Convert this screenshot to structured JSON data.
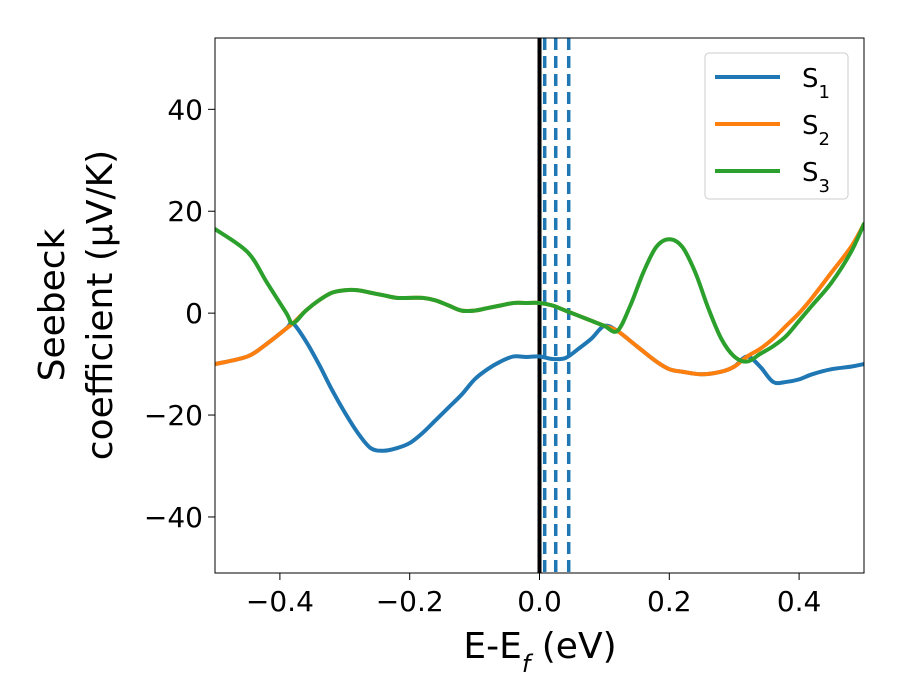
{
  "chart_data": {
    "type": "line",
    "xlabel": {
      "base": "E-E",
      "sub": "f",
      "rest": " (eV)"
    },
    "ylabel": {
      "line1": "Seebeck",
      "line2": "coefficient  (μV/K)"
    },
    "xlim": [
      -0.5,
      0.5
    ],
    "ylim": [
      -51,
      54
    ],
    "xticks": [
      -0.4,
      -0.2,
      0.0,
      0.2,
      0.4
    ],
    "xtick_labels": [
      "−0.4",
      "−0.2",
      "0.0",
      "0.2",
      "0.4"
    ],
    "yticks": [
      -40,
      -20,
      0,
      20,
      40
    ],
    "ytick_labels": [
      "−40",
      "−20",
      "0",
      "20",
      "40"
    ],
    "grid": false,
    "legend_position": "top-right",
    "vertical_lines": [
      {
        "x": 0.0,
        "color": "#000000",
        "style": "solid"
      },
      {
        "x": 0.008,
        "color": "#1f77b4",
        "style": "dashed"
      },
      {
        "x": 0.025,
        "color": "#1f77b4",
        "style": "dashed"
      },
      {
        "x": 0.045,
        "color": "#1f77b4",
        "style": "dashed"
      }
    ],
    "series": [
      {
        "name": "S",
        "sub": "1",
        "color": "#1f77b4",
        "x": [
          -0.5,
          -0.45,
          -0.42,
          -0.39,
          -0.38,
          -0.36,
          -0.34,
          -0.32,
          -0.3,
          -0.28,
          -0.26,
          -0.24,
          -0.22,
          -0.2,
          -0.18,
          -0.16,
          -0.14,
          -0.12,
          -0.1,
          -0.08,
          -0.06,
          -0.04,
          -0.02,
          0.0,
          0.02,
          0.04,
          0.06,
          0.08,
          0.1,
          0.12,
          0.15,
          0.18,
          0.2,
          0.22,
          0.25,
          0.28,
          0.3,
          0.32,
          0.34,
          0.36,
          0.38,
          0.4,
          0.42,
          0.45,
          0.48,
          0.5
        ],
        "y": [
          -10,
          -8.5,
          -6,
          -3,
          -2,
          -5.5,
          -10,
          -15,
          -19.5,
          -23.5,
          -26.5,
          -27,
          -26.5,
          -25.5,
          -23.5,
          -21,
          -18.5,
          -16,
          -13,
          -11,
          -9.5,
          -8.5,
          -8.6,
          -8.5,
          -9,
          -8.8,
          -7,
          -5,
          -2.5,
          -3.5,
          -6.5,
          -9.5,
          -11,
          -11.5,
          -12,
          -11.5,
          -10.5,
          -8.5,
          -10.5,
          -13.5,
          -13.5,
          -13,
          -12,
          -11,
          -10.5,
          -10
        ]
      },
      {
        "name": "S",
        "sub": "2",
        "color": "#ff7f0e",
        "x": [
          -0.5,
          -0.45,
          -0.42,
          -0.39,
          -0.38,
          -0.36,
          -0.34,
          -0.32,
          -0.3,
          -0.28,
          -0.26,
          -0.24,
          -0.22,
          -0.2,
          -0.18,
          -0.16,
          -0.14,
          -0.12,
          -0.1,
          -0.08,
          -0.06,
          -0.04,
          -0.02,
          0.0,
          0.02,
          0.04,
          0.06,
          0.08,
          0.1,
          0.12,
          0.15,
          0.18,
          0.2,
          0.22,
          0.25,
          0.28,
          0.3,
          0.32,
          0.34,
          0.36,
          0.38,
          0.4,
          0.42,
          0.45,
          0.48,
          0.5
        ],
        "y": [
          -10,
          -8.5,
          -6,
          -3,
          -2,
          0.5,
          2.5,
          4,
          4.5,
          4.5,
          4,
          3.5,
          3,
          3,
          3,
          2.5,
          1.5,
          0.5,
          0.5,
          1,
          1.5,
          2,
          2,
          2,
          1.5,
          0.5,
          -0.5,
          -1.5,
          -2.5,
          -3.5,
          -6.5,
          -9.5,
          -11,
          -11.5,
          -12,
          -11.5,
          -10.5,
          -8.5,
          -7,
          -5,
          -2.5,
          0,
          3,
          8,
          13,
          17.5
        ]
      },
      {
        "name": "S",
        "sub": "3",
        "color": "#2ca02c",
        "x": [
          -0.5,
          -0.45,
          -0.42,
          -0.39,
          -0.38,
          -0.36,
          -0.34,
          -0.32,
          -0.3,
          -0.28,
          -0.26,
          -0.24,
          -0.22,
          -0.2,
          -0.18,
          -0.16,
          -0.14,
          -0.12,
          -0.1,
          -0.08,
          -0.06,
          -0.04,
          -0.02,
          0.0,
          0.02,
          0.04,
          0.06,
          0.08,
          0.1,
          0.12,
          0.14,
          0.16,
          0.18,
          0.2,
          0.22,
          0.24,
          0.26,
          0.28,
          0.3,
          0.32,
          0.34,
          0.36,
          0.38,
          0.4,
          0.42,
          0.45,
          0.48,
          0.5
        ],
        "y": [
          16.5,
          12,
          6,
          0,
          -2,
          0.5,
          2.5,
          4,
          4.5,
          4.5,
          4,
          3.5,
          3,
          3,
          3,
          2.5,
          1.5,
          0.5,
          0.5,
          1,
          1.5,
          2,
          2,
          2,
          1.5,
          0.5,
          -0.5,
          -1.5,
          -2.5,
          -3.5,
          1.5,
          8,
          13,
          14.5,
          13,
          8,
          1,
          -5,
          -8.5,
          -9.5,
          -8,
          -6.5,
          -4.5,
          -1.5,
          1.5,
          6,
          12,
          17.5
        ]
      }
    ]
  }
}
